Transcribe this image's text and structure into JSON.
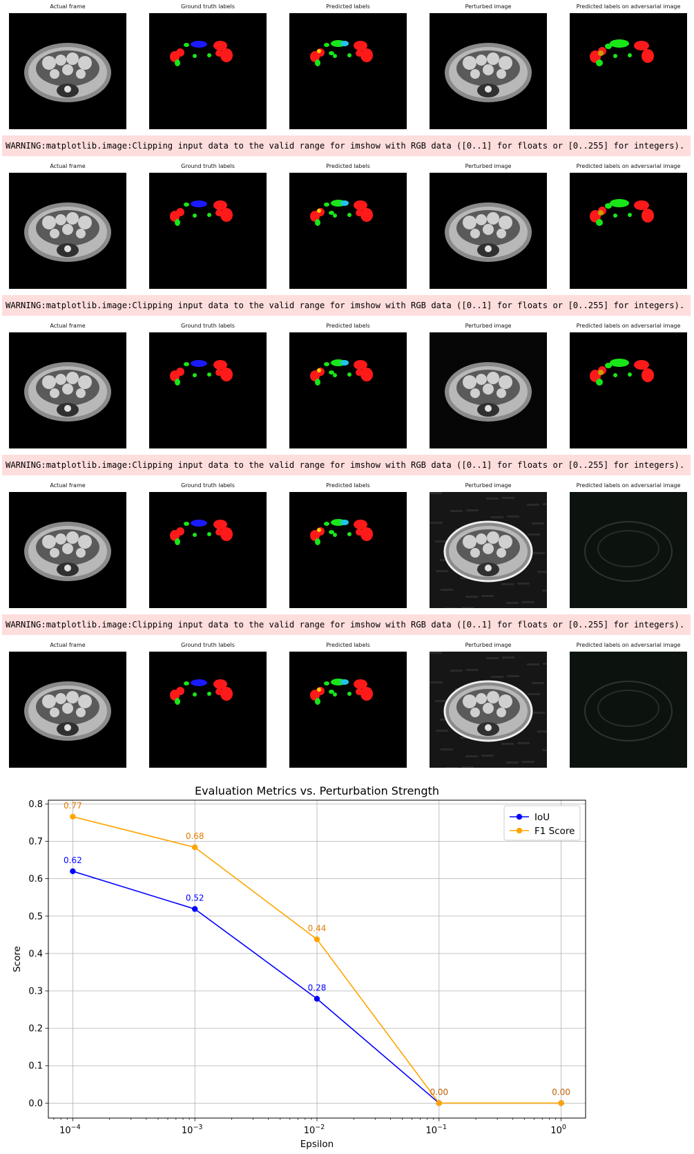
{
  "panel_titles": [
    "Actual frame",
    "Ground truth labels",
    "Predicted labels",
    "Perturbed image",
    "Predicted labels on adversarial image"
  ],
  "rows": [
    {
      "perturbed_noise": "none",
      "adversarial_prediction": "segmentation"
    },
    {
      "perturbed_noise": "none",
      "adversarial_prediction": "segmentation"
    },
    {
      "perturbed_noise": "slight",
      "adversarial_prediction": "segmentation"
    },
    {
      "perturbed_noise": "heavy",
      "adversarial_prediction": "noise"
    },
    {
      "perturbed_noise": "heavy",
      "adversarial_prediction": "noise"
    }
  ],
  "warning_text": "WARNING:matplotlib.image:Clipping input data to the valid range for imshow with RGB data ([0..1] for floats or [0..255] for integers).",
  "colors": {
    "warning_bg": "#fedddd",
    "label_red": "#ff1a1a",
    "label_green": "#19e619",
    "label_blue": "#1a1aff",
    "iou": "#0000ff",
    "f1": "#ffa500",
    "data_label_f1": "#e07b00"
  },
  "chart_data": {
    "type": "line",
    "title": "Evaluation Metrics vs. Perturbation Strength",
    "xlabel": "Epsilon",
    "ylabel": "Score",
    "x_scale": "log",
    "x": [
      0.0001,
      0.001,
      0.01,
      0.1,
      1
    ],
    "x_tick_labels": [
      {
        "base": "10",
        "exp": "−4"
      },
      {
        "base": "10",
        "exp": "−3"
      },
      {
        "base": "10",
        "exp": "−2"
      },
      {
        "base": "10",
        "exp": "−1"
      },
      {
        "base": "10",
        "exp": "0"
      }
    ],
    "ylim": [
      -0.04,
      0.81
    ],
    "y_ticks": [
      "0.0",
      "0.1",
      "0.2",
      "0.3",
      "0.4",
      "0.5",
      "0.6",
      "0.7",
      "0.8"
    ],
    "grid": true,
    "legend_position": "upper-right",
    "series": [
      {
        "name": "IoU",
        "values": [
          0.62,
          0.519,
          0.279,
          0.0,
          0.0
        ],
        "labels": [
          "0.62",
          "0.52",
          "0.28",
          "0.00",
          "0.00"
        ],
        "color": "#0000ff"
      },
      {
        "name": "F1 Score",
        "values": [
          0.766,
          0.684,
          0.438,
          0.0,
          0.0
        ],
        "labels": [
          "0.77",
          "0.68",
          "0.44",
          "0.00",
          "0.00"
        ],
        "color": "#ffa500"
      }
    ]
  }
}
